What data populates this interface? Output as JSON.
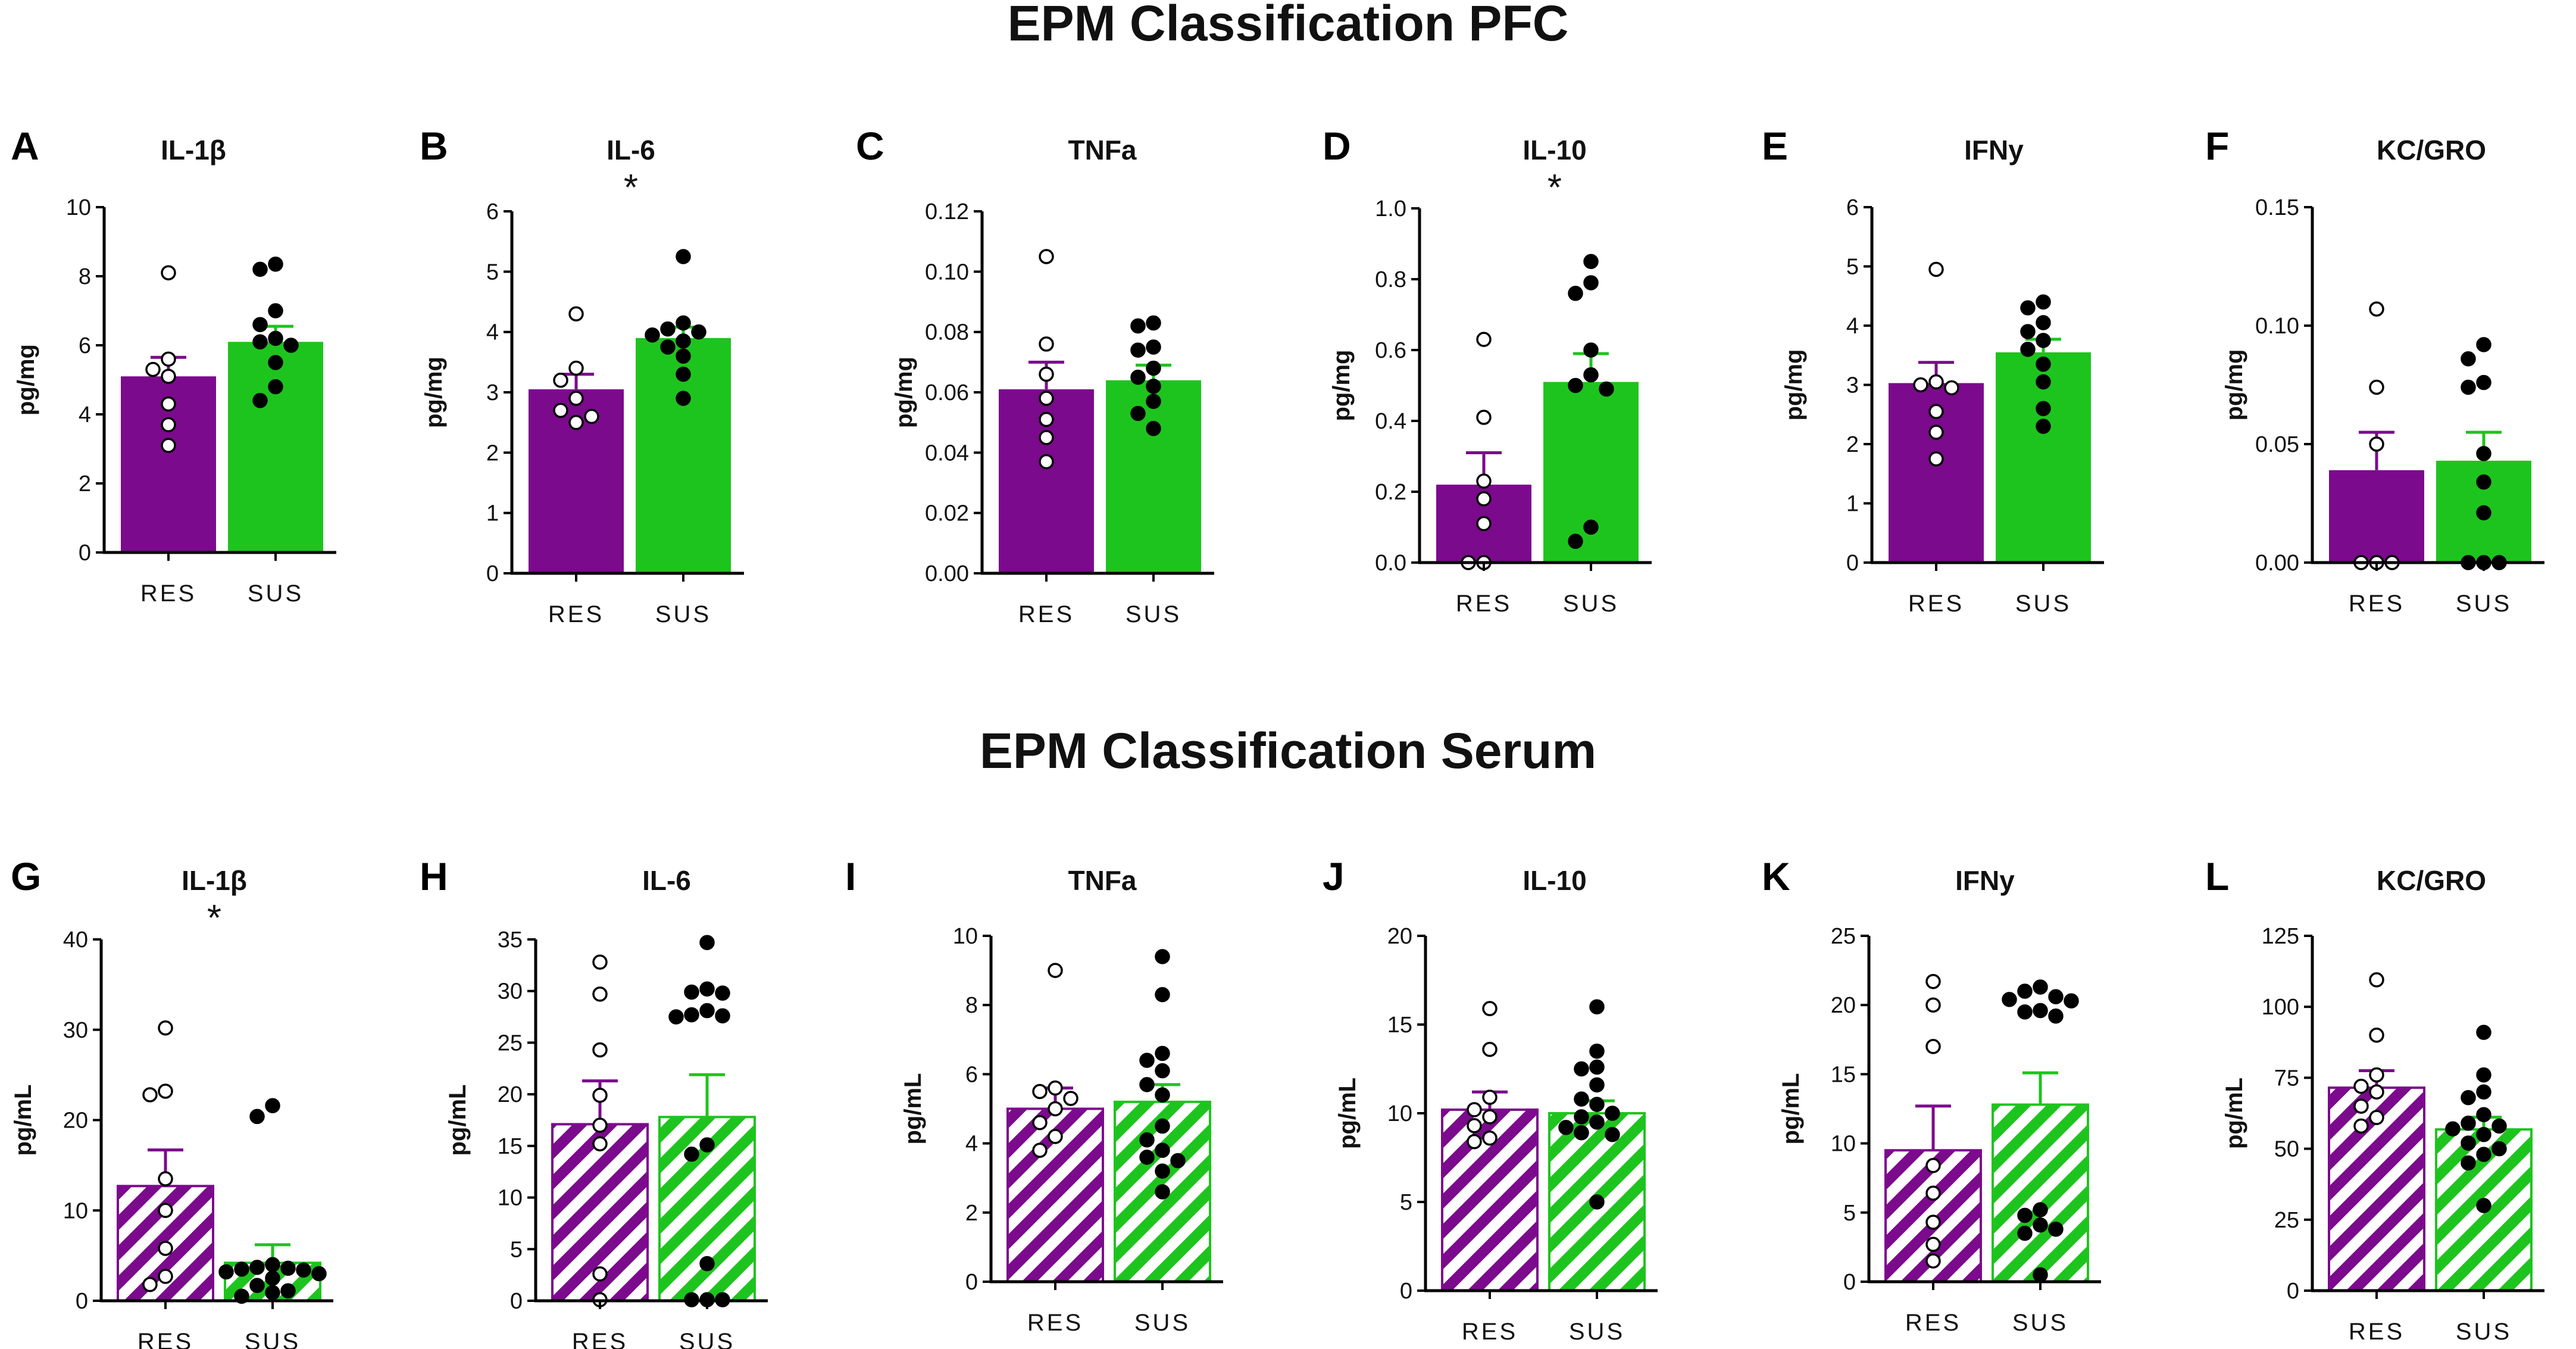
{
  "section_titles": {
    "pfc": "EPM Classification PFC",
    "serum": "EPM Classification Serum"
  },
  "colors": {
    "res": "#7b0a8c",
    "sus": "#1ec41e",
    "axis": "#000000"
  },
  "chart_data": [
    {
      "id": "A",
      "type": "bar",
      "title": "IL-1β",
      "ylabel": "pg/mg",
      "categories": [
        "RES",
        "SUS"
      ],
      "ylim": [
        0,
        10
      ],
      "ticks": [
        "0",
        "2",
        "4",
        "6",
        "8",
        "10"
      ],
      "values": [
        5.1,
        6.1
      ],
      "sem": [
        0.55,
        0.45
      ],
      "significance": "",
      "points": [
        [
          8.1,
          5.6,
          5.3,
          5.1,
          4.3,
          3.7,
          3.1
        ],
        [
          8.35,
          8.2,
          7.0,
          6.6,
          6.2,
          6.1,
          6.0,
          5.5,
          4.8,
          4.4
        ]
      ],
      "hatched": false,
      "row": "pfc"
    },
    {
      "id": "B",
      "type": "bar",
      "title": "IL-6",
      "ylabel": "pg/mg",
      "categories": [
        "RES",
        "SUS"
      ],
      "ylim": [
        0,
        6
      ],
      "ticks": [
        "0",
        "1",
        "2",
        "3",
        "4",
        "5",
        "6"
      ],
      "values": [
        3.05,
        3.9
      ],
      "sem": [
        0.25,
        0.18
      ],
      "significance": "*",
      "points": [
        [
          4.3,
          3.4,
          3.2,
          2.9,
          2.7,
          2.5,
          2.6
        ],
        [
          5.25,
          4.15,
          4.05,
          4.0,
          3.95,
          3.85,
          3.75,
          3.6,
          3.3,
          2.9
        ]
      ],
      "hatched": false,
      "row": "pfc"
    },
    {
      "id": "C",
      "type": "bar",
      "title": "TNFa",
      "ylabel": "pg/mg",
      "categories": [
        "RES",
        "SUS"
      ],
      "ylim": [
        0,
        0.12
      ],
      "ticks": [
        "0.00",
        "0.02",
        "0.04",
        "0.06",
        "0.08",
        "0.10",
        "0.12"
      ],
      "values": [
        0.061,
        0.064
      ],
      "sem": [
        0.009,
        0.005
      ],
      "significance": "",
      "points": [
        [
          0.105,
          0.076,
          0.066,
          0.058,
          0.051,
          0.045,
          0.037
        ],
        [
          0.083,
          0.082,
          0.075,
          0.074,
          0.068,
          0.065,
          0.062,
          0.057,
          0.053,
          0.048
        ]
      ],
      "hatched": false,
      "row": "pfc"
    },
    {
      "id": "D",
      "type": "bar",
      "title": "IL-10",
      "ylabel": "pg/mg",
      "categories": [
        "RES",
        "SUS"
      ],
      "ylim": [
        0,
        1.0
      ],
      "ticks": [
        "0.0",
        "0.2",
        "0.4",
        "0.6",
        "0.8",
        "1.0"
      ],
      "values": [
        0.22,
        0.51
      ],
      "sem": [
        0.09,
        0.08
      ],
      "significance": "*",
      "points": [
        [
          0.63,
          0.41,
          0.23,
          0.18,
          0.11,
          0.0,
          0.0
        ],
        [
          0.85,
          0.79,
          0.76,
          0.6,
          0.53,
          0.5,
          0.49,
          0.1,
          0.06
        ]
      ],
      "hatched": false,
      "row": "pfc"
    },
    {
      "id": "E",
      "type": "bar",
      "title": "IFNy",
      "ylabel": "pg/mg",
      "categories": [
        "RES",
        "SUS"
      ],
      "ylim": [
        0,
        6
      ],
      "ticks": [
        "0",
        "1",
        "2",
        "3",
        "4",
        "5",
        "6"
      ],
      "values": [
        3.03,
        3.55
      ],
      "sem": [
        0.35,
        0.22
      ],
      "significance": "",
      "points": [
        [
          4.95,
          3.05,
          3.0,
          2.95,
          2.55,
          2.2,
          1.75
        ],
        [
          4.4,
          4.3,
          4.05,
          3.9,
          3.75,
          3.6,
          3.35,
          3.05,
          2.6,
          2.3
        ]
      ],
      "hatched": false,
      "row": "pfc"
    },
    {
      "id": "F",
      "type": "bar",
      "title": "KC/GRO",
      "ylabel": "pg/mg",
      "categories": [
        "RES",
        "SUS"
      ],
      "ylim": [
        0,
        0.15
      ],
      "ticks": [
        "0.00",
        "0.05",
        "0.10",
        "0.15"
      ],
      "values": [
        0.039,
        0.043
      ],
      "sem": [
        0.016,
        0.012
      ],
      "significance": "",
      "points": [
        [
          0.107,
          0.074,
          0.05,
          0.0,
          0.0,
          0.0
        ],
        [
          0.092,
          0.086,
          0.076,
          0.074,
          0.046,
          0.034,
          0.021,
          0.0,
          0.0,
          0.0
        ]
      ],
      "hatched": false,
      "row": "pfc"
    },
    {
      "id": "G",
      "type": "bar",
      "title": "IL-1β",
      "ylabel": "pg/mL",
      "categories": [
        "RES",
        "SUS"
      ],
      "ylim": [
        0,
        40
      ],
      "ticks": [
        "0",
        "10",
        "20",
        "30",
        "40"
      ],
      "values": [
        12.7,
        4.2
      ],
      "sem": [
        4.0,
        2.0
      ],
      "significance": "*",
      "points": [
        [
          30.2,
          23.2,
          22.8,
          13.5,
          10.0,
          5.8,
          2.7,
          1.8
        ],
        [
          21.6,
          20.4,
          4.0,
          3.7,
          3.6,
          3.5,
          3.4,
          3.2,
          3.0,
          2.5,
          1.7,
          1.1,
          0.9,
          0.5
        ]
      ],
      "hatched": true,
      "row": "serum"
    },
    {
      "id": "H",
      "type": "bar",
      "title": "IL-6",
      "ylabel": "pg/mL",
      "categories": [
        "RES",
        "SUS"
      ],
      "ylim": [
        0,
        35
      ],
      "ticks": [
        "0",
        "5",
        "10",
        "15",
        "20",
        "25",
        "30",
        "35"
      ],
      "values": [
        17.1,
        17.8
      ],
      "sem": [
        4.2,
        4.1
      ],
      "significance": "",
      "points": [
        [
          32.8,
          29.7,
          24.3,
          19.9,
          17.0,
          15.2,
          2.6,
          0.1
        ],
        [
          34.7,
          30.2,
          29.9,
          29.8,
          28.1,
          27.7,
          27.6,
          27.5,
          15.1,
          14.2,
          3.6,
          0.1,
          0.1,
          0.1
        ]
      ],
      "hatched": true,
      "row": "serum"
    },
    {
      "id": "I",
      "type": "bar",
      "title": "TNFa",
      "ylabel": "pg/mL",
      "categories": [
        "RES",
        "SUS"
      ],
      "ylim": [
        0,
        10
      ],
      "ticks": [
        "0",
        "2",
        "4",
        "6",
        "8",
        "10"
      ],
      "values": [
        5.0,
        5.2
      ],
      "sem": [
        0.6,
        0.5
      ],
      "significance": "",
      "points": [
        [
          9.0,
          5.6,
          5.5,
          5.3,
          5.0,
          4.6,
          4.2,
          3.8
        ],
        [
          9.4,
          8.3,
          6.6,
          6.4,
          6.1,
          5.7,
          5.4,
          4.5,
          4.1,
          3.8,
          3.6,
          3.5,
          3.2,
          2.6
        ]
      ],
      "hatched": true,
      "row": "serum"
    },
    {
      "id": "J",
      "type": "bar",
      "title": "IL-10",
      "ylabel": "pg/mL",
      "categories": [
        "RES",
        "SUS"
      ],
      "ylim": [
        0,
        20
      ],
      "ticks": [
        "0",
        "5",
        "10",
        "15",
        "20"
      ],
      "values": [
        10.2,
        10.0
      ],
      "sem": [
        1.0,
        0.7
      ],
      "significance": "",
      "points": [
        [
          15.9,
          13.6,
          10.9,
          10.2,
          9.8,
          9.3,
          8.6,
          8.4
        ],
        [
          16.0,
          13.5,
          12.6,
          12.5,
          11.6,
          10.8,
          10.5,
          10.0,
          9.8,
          9.5,
          9.2,
          8.9,
          8.8,
          5.0
        ]
      ],
      "hatched": true,
      "row": "serum"
    },
    {
      "id": "K",
      "type": "bar",
      "title": "IFNy",
      "ylabel": "pg/mL",
      "categories": [
        "RES",
        "SUS"
      ],
      "ylim": [
        0,
        25
      ],
      "ticks": [
        "0",
        "5",
        "10",
        "15",
        "20",
        "25"
      ],
      "values": [
        9.5,
        12.8
      ],
      "sem": [
        3.2,
        2.3
      ],
      "significance": "",
      "points": [
        [
          21.7,
          20.0,
          17.0,
          8.4,
          6.4,
          4.3,
          2.7,
          1.5
        ],
        [
          21.3,
          21.0,
          20.6,
          20.4,
          20.3,
          19.6,
          19.5,
          19.2,
          5.2,
          4.8,
          4.1,
          3.8,
          3.5,
          0.5
        ]
      ],
      "hatched": true,
      "row": "serum"
    },
    {
      "id": "L",
      "type": "bar",
      "title": "KC/GRO",
      "ylabel": "pg/mL",
      "categories": [
        "RES",
        "SUS"
      ],
      "ylim": [
        0,
        125
      ],
      "ticks": [
        "0",
        "25",
        "50",
        "75",
        "100",
        "125"
      ],
      "values": [
        71.5,
        56.8
      ],
      "sem": [
        6.0,
        4.3
      ],
      "significance": "",
      "points": [
        [
          109.5,
          90.0,
          76.0,
          72.0,
          70.0,
          65.0,
          61.0,
          58.0
        ],
        [
          91.0,
          76.0,
          70.0,
          68.0,
          62.0,
          59.0,
          58.0,
          57.0,
          55.0,
          52.0,
          50.0,
          48.0,
          45.0,
          30.0
        ]
      ],
      "hatched": true,
      "row": "serum"
    }
  ]
}
